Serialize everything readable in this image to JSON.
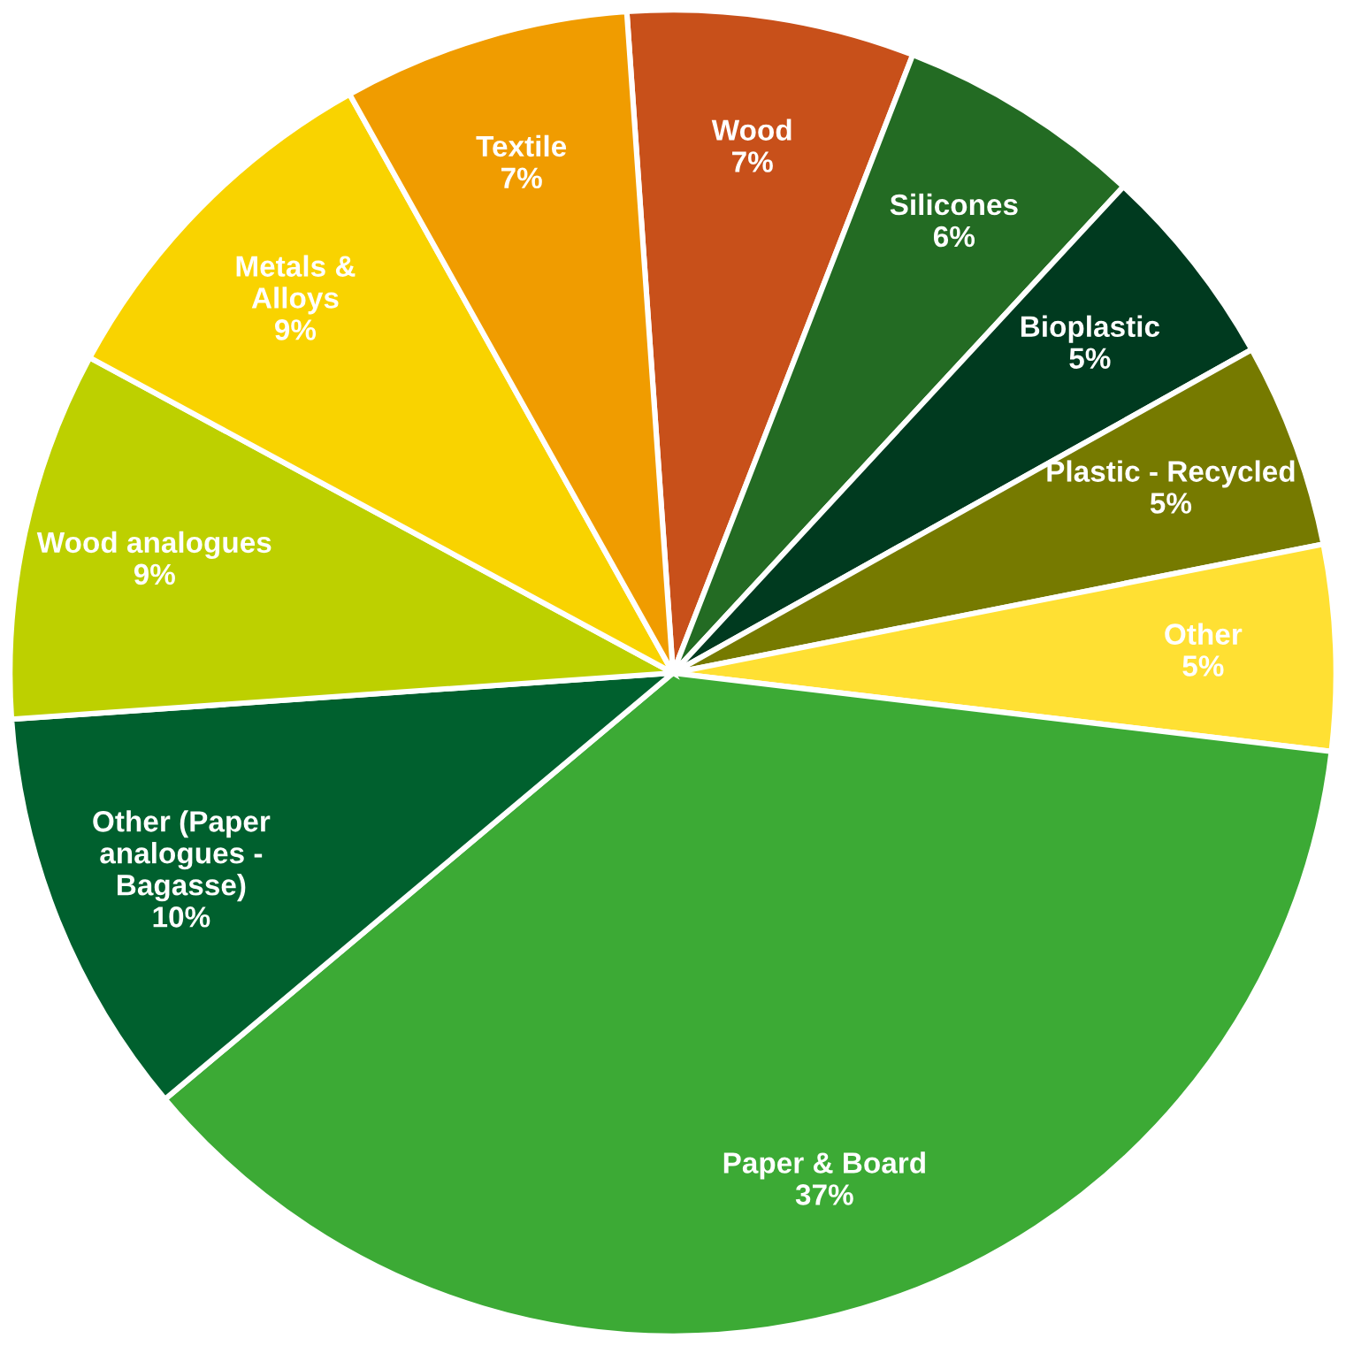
{
  "chart_data": {
    "type": "pie",
    "categories": [
      "Wood",
      "Silicones",
      "Bioplastic",
      "Plastic - Recycled",
      "Other",
      "Paper & Board",
      "Other (Paper\nanalogues -\nBagasse)",
      "Wood analogues",
      "Metals &\nAlloys",
      "Textile"
    ],
    "values": [
      7,
      6,
      5,
      5,
      5,
      37,
      10,
      9,
      9,
      7
    ],
    "value_labels": [
      "7%",
      "6%",
      "5%",
      "5%",
      "5%",
      "37%",
      "10%",
      "9%",
      "9%",
      "7%"
    ],
    "colors": [
      "#c8501a",
      "#236b23",
      "#003a1f",
      "#767a00",
      "#ffe033",
      "#3caa35",
      "#00602e",
      "#bdd000",
      "#f9d300",
      "#f09c00"
    ]
  }
}
